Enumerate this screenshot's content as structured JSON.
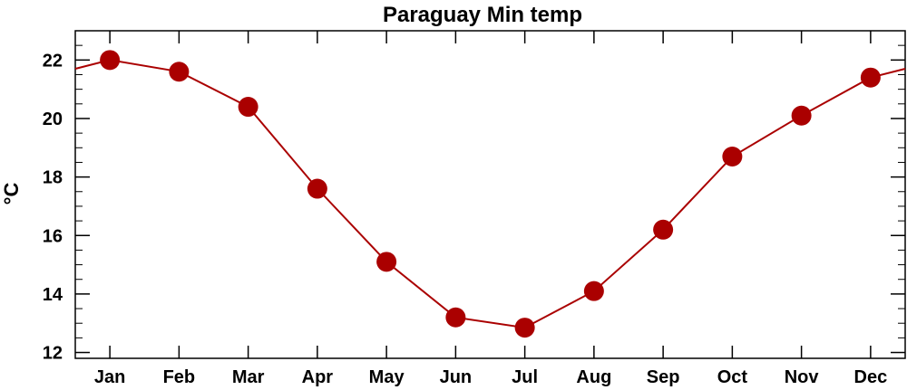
{
  "chart_data": {
    "type": "line",
    "title": "Paraguay Min temp",
    "xlabel": "",
    "ylabel": "°C",
    "categories": [
      "Jan",
      "Feb",
      "Mar",
      "Apr",
      "May",
      "Jun",
      "Jul",
      "Aug",
      "Sep",
      "Oct",
      "Nov",
      "Dec"
    ],
    "values": [
      22.0,
      21.6,
      20.4,
      17.6,
      15.1,
      13.2,
      12.85,
      14.1,
      16.2,
      18.7,
      20.1,
      21.4
    ],
    "ylim": [
      11.8,
      23.0
    ],
    "yticks": [
      12,
      14,
      16,
      18,
      20,
      22
    ],
    "ytick_labels": [
      "12",
      "14",
      "16",
      "18",
      "20",
      "22"
    ],
    "grid": false,
    "line_color": "#aa0000",
    "marker_color": "#aa0000",
    "wraparound": true
  }
}
